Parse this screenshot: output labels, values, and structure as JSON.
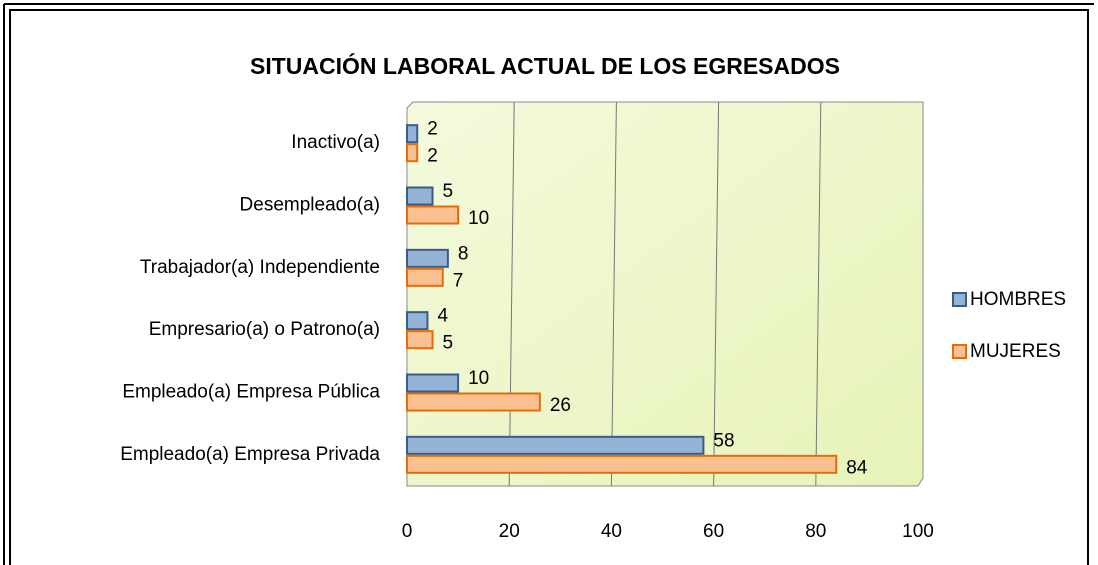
{
  "chart_data": {
    "type": "hbar",
    "title": "SITUACIÓN LABORAL ACTUAL DE LOS EGRESADOS",
    "categories": [
      "Inactivo(a)",
      "Desempleado(a)",
      "Trabajador(a) Independiente",
      "Empresario(a) o Patrono(a)",
      "Empleado(a) Empresa Pública",
      "Empleado(a) Empresa Privada"
    ],
    "series": [
      {
        "name": "HOMBRES",
        "color": "#95b3d7",
        "edge": "#385d8a",
        "values": [
          2,
          5,
          8,
          4,
          10,
          58
        ]
      },
      {
        "name": "MUJERES",
        "color": "#fac090",
        "edge": "#e46c0a",
        "values": [
          2,
          10,
          7,
          5,
          26,
          84
        ]
      }
    ],
    "xlim": [
      0,
      100
    ],
    "xticks": [
      0,
      20,
      40,
      60,
      80,
      100
    ],
    "grid": true,
    "legend": "right"
  }
}
